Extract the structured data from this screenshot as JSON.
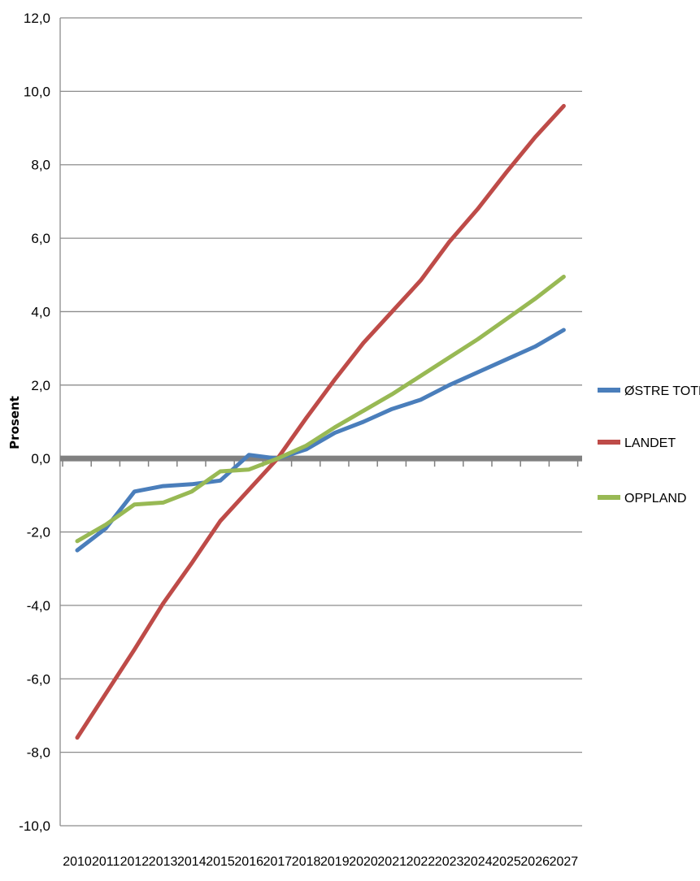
{
  "chart_data": {
    "type": "line",
    "title": "",
    "xlabel": "",
    "ylabel": "Prosent",
    "ylim": [
      -10,
      12
    ],
    "yticks": [
      "12,0",
      "10,0",
      "8,0",
      "6,0",
      "4,0",
      "2,0",
      "0,0",
      "-2,0",
      "-4,0",
      "-6,0",
      "-8,0",
      "-10,0"
    ],
    "yticks_values": [
      12,
      10,
      8,
      6,
      4,
      2,
      0,
      -2,
      -4,
      -6,
      -8,
      -10
    ],
    "categories": [
      "2010",
      "2011",
      "2012",
      "2013",
      "2014",
      "2015",
      "2016",
      "2017",
      "2018",
      "2019",
      "2020",
      "2021",
      "2022",
      "2023",
      "2024",
      "2025",
      "2026",
      "2027"
    ],
    "grid": true,
    "legend_position": "right",
    "series": [
      {
        "name": "ØSTRE TOTEN",
        "color": "#4a7ebb",
        "values": [
          -2.5,
          -1.9,
          -0.9,
          -0.75,
          -0.7,
          -0.6,
          0.1,
          0.0,
          0.25,
          0.7,
          1.0,
          1.35,
          1.6,
          2.0,
          2.35,
          2.7,
          3.05,
          3.5
        ]
      },
      {
        "name": "LANDET",
        "color": "#be4b48",
        "values": [
          -7.6,
          -6.4,
          -5.2,
          -3.95,
          -2.85,
          -1.7,
          -0.85,
          0.0,
          1.1,
          2.15,
          3.15,
          4.0,
          4.85,
          5.9,
          6.8,
          7.8,
          8.75,
          9.6
        ]
      },
      {
        "name": "OPPLAND",
        "color": "#98b954",
        "values": [
          -2.25,
          -1.8,
          -1.25,
          -1.2,
          -0.9,
          -0.35,
          -0.3,
          0.0,
          0.35,
          0.85,
          1.3,
          1.75,
          2.25,
          2.75,
          3.25,
          3.8,
          4.35,
          4.95
        ]
      }
    ]
  }
}
